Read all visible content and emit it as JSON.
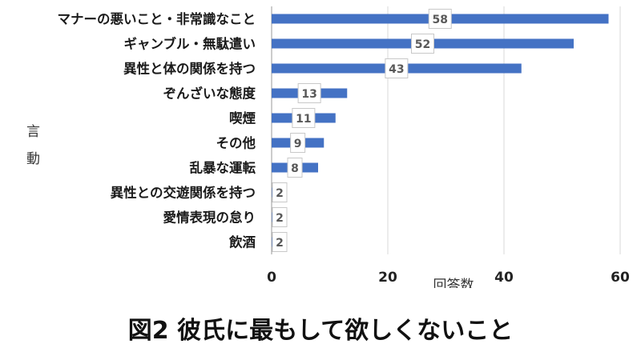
{
  "chart_data": {
    "type": "bar",
    "orientation": "horizontal",
    "categories": [
      "マナーの悪いこと・非常識なこと",
      "ギャンブル・無駄遣い",
      "異性と体の関係を持つ",
      "ぞんざいな態度",
      "喫煙",
      "その他",
      "乱暴な運転",
      "異性との交遊関係を持つ",
      "愛情表現の怠り",
      "飲酒"
    ],
    "values": [
      58,
      52,
      43,
      13,
      11,
      9,
      8,
      2,
      2,
      2
    ],
    "xlabel": "回答数",
    "ylabel": "言動",
    "xlim": [
      0,
      60
    ],
    "xticks": [
      0,
      20,
      40,
      60
    ],
    "bar_color": "#4472C4",
    "grid": "vertical"
  },
  "caption": "図2 彼氏に最もして欲しくないこと"
}
